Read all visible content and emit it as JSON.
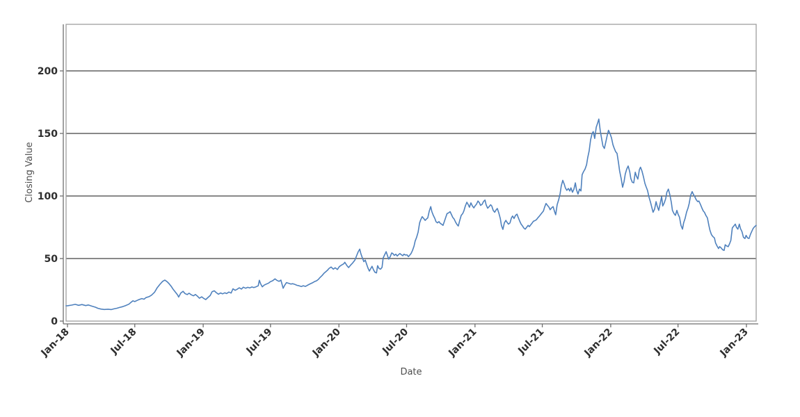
{
  "chart_data": {
    "type": "line",
    "title": "",
    "xlabel": "Date",
    "ylabel": "Closing Value",
    "series_name": "Closing Value",
    "legend": "none",
    "grid": "horizontal-only",
    "background_color": "#ffffff",
    "line_color": "#4f81bd",
    "grid_color": "#111111",
    "frame_color": "#9e9e9e",
    "axis_line_color": "#6e6e6e",
    "tick_label_color": "#2e2e2e",
    "ylim": [
      0,
      237
    ],
    "x_domain_days": [
      -4,
      1852
    ],
    "y_ticks": [
      0,
      50,
      100,
      150,
      200
    ],
    "grid_values": [
      50,
      100,
      150,
      200
    ],
    "x_ticks": [
      {
        "label": "Jan-18",
        "day": 0
      },
      {
        "label": "Jul-18",
        "day": 181
      },
      {
        "label": "Jan-19",
        "day": 365
      },
      {
        "label": "Jul-19",
        "day": 546
      },
      {
        "label": "Jan-20",
        "day": 730
      },
      {
        "label": "Jul-20",
        "day": 912
      },
      {
        "label": "Jan-21",
        "day": 1096
      },
      {
        "label": "Jul-21",
        "day": 1277
      },
      {
        "label": "Jan-22",
        "day": 1461
      },
      {
        "label": "Jul-22",
        "day": 1642
      },
      {
        "label": "Jan-23",
        "day": 1826
      }
    ],
    "points": [
      [
        -4,
        12.2
      ],
      [
        0,
        12.3
      ],
      [
        11,
        12.8
      ],
      [
        21,
        13.4
      ],
      [
        30,
        12.6
      ],
      [
        39,
        13.2
      ],
      [
        49,
        12.4
      ],
      [
        56,
        12.9
      ],
      [
        65,
        12.0
      ],
      [
        75,
        11.1
      ],
      [
        82,
        10.2
      ],
      [
        90,
        9.6
      ],
      [
        99,
        9.3
      ],
      [
        109,
        9.5
      ],
      [
        118,
        9.2
      ],
      [
        125,
        9.8
      ],
      [
        133,
        10.3
      ],
      [
        140,
        10.9
      ],
      [
        148,
        11.5
      ],
      [
        155,
        12.2
      ],
      [
        165,
        13.5
      ],
      [
        170,
        14.8
      ],
      [
        176,
        16.2
      ],
      [
        181,
        15.6
      ],
      [
        187,
        16.5
      ],
      [
        193,
        17.3
      ],
      [
        200,
        18.0
      ],
      [
        206,
        17.5
      ],
      [
        211,
        18.8
      ],
      [
        219,
        19.5
      ],
      [
        226,
        20.7
      ],
      [
        234,
        23.0
      ],
      [
        241,
        26.5
      ],
      [
        249,
        29.5
      ],
      [
        256,
        31.8
      ],
      [
        262,
        32.8
      ],
      [
        268,
        31.5
      ],
      [
        273,
        30.0
      ],
      [
        279,
        27.8
      ],
      [
        284,
        25.5
      ],
      [
        290,
        23.3
      ],
      [
        296,
        21.0
      ],
      [
        299,
        19.2
      ],
      [
        305,
        22.5
      ],
      [
        311,
        23.8
      ],
      [
        316,
        22.0
      ],
      [
        322,
        21.2
      ],
      [
        327,
        22.3
      ],
      [
        333,
        21.0
      ],
      [
        339,
        20.2
      ],
      [
        344,
        21.3
      ],
      [
        350,
        19.8
      ],
      [
        355,
        18.3
      ],
      [
        361,
        19.4
      ],
      [
        367,
        18.0
      ],
      [
        372,
        17.2
      ],
      [
        378,
        18.9
      ],
      [
        384,
        20.5
      ],
      [
        389,
        23.5
      ],
      [
        395,
        24.2
      ],
      [
        400,
        22.8
      ],
      [
        406,
        21.5
      ],
      [
        412,
        22.5
      ],
      [
        417,
        21.8
      ],
      [
        423,
        22.6
      ],
      [
        428,
        22.0
      ],
      [
        434,
        23.2
      ],
      [
        440,
        22.4
      ],
      [
        445,
        25.8
      ],
      [
        451,
        24.6
      ],
      [
        456,
        25.4
      ],
      [
        462,
        26.6
      ],
      [
        468,
        25.6
      ],
      [
        473,
        27.1
      ],
      [
        479,
        26.3
      ],
      [
        485,
        27.0
      ],
      [
        490,
        26.5
      ],
      [
        496,
        27.3
      ],
      [
        501,
        26.8
      ],
      [
        507,
        27.4
      ],
      [
        513,
        28.2
      ],
      [
        516,
        32.6
      ],
      [
        520,
        29.5
      ],
      [
        524,
        27.4
      ],
      [
        529,
        28.8
      ],
      [
        535,
        29.6
      ],
      [
        541,
        30.4
      ],
      [
        546,
        31.5
      ],
      [
        552,
        32.3
      ],
      [
        558,
        33.8
      ],
      [
        563,
        32.6
      ],
      [
        569,
        31.8
      ],
      [
        574,
        32.8
      ],
      [
        580,
        26.3
      ],
      [
        584,
        28.5
      ],
      [
        589,
        30.8
      ],
      [
        595,
        30.2
      ],
      [
        601,
        29.6
      ],
      [
        606,
        29.9
      ],
      [
        612,
        29.3
      ],
      [
        617,
        28.6
      ],
      [
        623,
        28.2
      ],
      [
        629,
        27.6
      ],
      [
        634,
        28.3
      ],
      [
        640,
        27.7
      ],
      [
        644,
        28.4
      ],
      [
        647,
        28.9
      ],
      [
        653,
        29.8
      ],
      [
        659,
        30.6
      ],
      [
        664,
        31.5
      ],
      [
        670,
        32.2
      ],
      [
        675,
        33.4
      ],
      [
        679,
        34.8
      ],
      [
        685,
        36.5
      ],
      [
        690,
        38.3
      ],
      [
        696,
        39.8
      ],
      [
        700,
        40.9
      ],
      [
        703,
        42.0
      ],
      [
        709,
        43.2
      ],
      [
        715,
        41.5
      ],
      [
        720,
        42.6
      ],
      [
        726,
        41.2
      ],
      [
        731,
        43.5
      ],
      [
        737,
        44.8
      ],
      [
        743,
        45.8
      ],
      [
        746,
        47.0
      ],
      [
        752,
        44.2
      ],
      [
        756,
        42.8
      ],
      [
        761,
        44.6
      ],
      [
        767,
        46.5
      ],
      [
        773,
        48.8
      ],
      [
        778,
        52.5
      ],
      [
        782,
        55.5
      ],
      [
        786,
        57.5
      ],
      [
        789,
        54.0
      ],
      [
        793,
        50.5
      ],
      [
        797,
        47.5
      ],
      [
        801,
        48.8
      ],
      [
        804,
        46.0
      ],
      [
        808,
        42.5
      ],
      [
        812,
        40.0
      ],
      [
        816,
        42.2
      ],
      [
        819,
        43.8
      ],
      [
        823,
        41.0
      ],
      [
        827,
        39.0
      ],
      [
        831,
        38.5
      ],
      [
        834,
        44.3
      ],
      [
        838,
        42.0
      ],
      [
        842,
        41.5
      ],
      [
        846,
        43.0
      ],
      [
        849,
        50.5
      ],
      [
        853,
        53.0
      ],
      [
        857,
        55.5
      ],
      [
        861,
        52.0
      ],
      [
        864,
        49.5
      ],
      [
        868,
        51.5
      ],
      [
        872,
        54.5
      ],
      [
        875,
        54.0
      ],
      [
        879,
        52.5
      ],
      [
        883,
        53.5
      ],
      [
        887,
        52.0
      ],
      [
        890,
        53.0
      ],
      [
        894,
        54.0
      ],
      [
        898,
        53.0
      ],
      [
        902,
        52.3
      ],
      [
        905,
        53.5
      ],
      [
        909,
        52.8
      ],
      [
        913,
        53.0
      ],
      [
        917,
        51.5
      ],
      [
        920,
        52.5
      ],
      [
        924,
        54.0
      ],
      [
        928,
        56.5
      ],
      [
        932,
        60.0
      ],
      [
        935,
        64.0
      ],
      [
        939,
        67.0
      ],
      [
        943,
        71.0
      ],
      [
        947,
        78.5
      ],
      [
        950,
        81.0
      ],
      [
        954,
        83.5
      ],
      [
        958,
        82.0
      ],
      [
        962,
        80.5
      ],
      [
        965,
        81.5
      ],
      [
        969,
        82.5
      ],
      [
        973,
        88.0
      ],
      [
        977,
        91.5
      ],
      [
        980,
        87.5
      ],
      [
        984,
        84.5
      ],
      [
        988,
        82.0
      ],
      [
        991,
        79.5
      ],
      [
        995,
        78.5
      ],
      [
        999,
        79.5
      ],
      [
        1003,
        78.0
      ],
      [
        1006,
        77.5
      ],
      [
        1010,
        76.5
      ],
      [
        1014,
        80.0
      ],
      [
        1018,
        83.5
      ],
      [
        1021,
        86.0
      ],
      [
        1025,
        86.5
      ],
      [
        1029,
        87.5
      ],
      [
        1033,
        85.0
      ],
      [
        1036,
        83.0
      ],
      [
        1040,
        81.5
      ],
      [
        1044,
        79.0
      ],
      [
        1048,
        77.0
      ],
      [
        1051,
        76.0
      ],
      [
        1055,
        80.5
      ],
      [
        1059,
        84.5
      ],
      [
        1063,
        86.0
      ],
      [
        1066,
        88.0
      ],
      [
        1070,
        92.0
      ],
      [
        1074,
        95.0
      ],
      [
        1078,
        93.0
      ],
      [
        1081,
        91.0
      ],
      [
        1085,
        94.5
      ],
      [
        1089,
        92.0
      ],
      [
        1093,
        90.5
      ],
      [
        1096,
        92.0
      ],
      [
        1100,
        93.5
      ],
      [
        1104,
        96.0
      ],
      [
        1108,
        94.5
      ],
      [
        1111,
        92.5
      ],
      [
        1115,
        93.3
      ],
      [
        1119,
        95.6
      ],
      [
        1123,
        96.8
      ],
      [
        1126,
        93.0
      ],
      [
        1130,
        90.2
      ],
      [
        1134,
        91.5
      ],
      [
        1138,
        93.0
      ],
      [
        1141,
        92.0
      ],
      [
        1145,
        88.5
      ],
      [
        1149,
        87.0
      ],
      [
        1153,
        89.0
      ],
      [
        1156,
        90.0
      ],
      [
        1160,
        86.5
      ],
      [
        1164,
        82.0
      ],
      [
        1167,
        76.5
      ],
      [
        1171,
        73.3
      ],
      [
        1175,
        78.5
      ],
      [
        1179,
        80.5
      ],
      [
        1182,
        79.0
      ],
      [
        1186,
        77.5
      ],
      [
        1190,
        78.5
      ],
      [
        1194,
        82.5
      ],
      [
        1197,
        84.0
      ],
      [
        1201,
        82.0
      ],
      [
        1205,
        84.5
      ],
      [
        1209,
        85.5
      ],
      [
        1212,
        83.0
      ],
      [
        1216,
        80.0
      ],
      [
        1220,
        77.5
      ],
      [
        1224,
        76.0
      ],
      [
        1227,
        74.5
      ],
      [
        1231,
        73.5
      ],
      [
        1235,
        75.0
      ],
      [
        1239,
        76.5
      ],
      [
        1242,
        75.5
      ],
      [
        1246,
        77.0
      ],
      [
        1250,
        78.5
      ],
      [
        1253,
        79.8
      ],
      [
        1257,
        80.3
      ],
      [
        1261,
        81.0
      ],
      [
        1265,
        82.5
      ],
      [
        1268,
        83.5
      ],
      [
        1272,
        85.0
      ],
      [
        1276,
        86.5
      ],
      [
        1280,
        88.0
      ],
      [
        1283,
        91.0
      ],
      [
        1287,
        94.0
      ],
      [
        1291,
        92.5
      ],
      [
        1295,
        91.0
      ],
      [
        1298,
        89.0
      ],
      [
        1302,
        90.5
      ],
      [
        1306,
        91.5
      ],
      [
        1310,
        87.5
      ],
      [
        1313,
        85.0
      ],
      [
        1317,
        93.0
      ],
      [
        1321,
        97.0
      ],
      [
        1325,
        102.0
      ],
      [
        1328,
        108.0
      ],
      [
        1332,
        112.5
      ],
      [
        1336,
        109.5
      ],
      [
        1339,
        106.5
      ],
      [
        1343,
        104.5
      ],
      [
        1347,
        106.0
      ],
      [
        1351,
        104.0
      ],
      [
        1354,
        106.5
      ],
      [
        1358,
        103.0
      ],
      [
        1362,
        105.5
      ],
      [
        1366,
        110.5
      ],
      [
        1369,
        105.0
      ],
      [
        1373,
        101.5
      ],
      [
        1377,
        105.5
      ],
      [
        1381,
        104.0
      ],
      [
        1384,
        117.0
      ],
      [
        1388,
        119.5
      ],
      [
        1392,
        121.5
      ],
      [
        1396,
        125.0
      ],
      [
        1399,
        130.5
      ],
      [
        1403,
        136.0
      ],
      [
        1407,
        145.0
      ],
      [
        1411,
        150.0
      ],
      [
        1414,
        151.5
      ],
      [
        1418,
        146.0
      ],
      [
        1422,
        155.0
      ],
      [
        1426,
        158.5
      ],
      [
        1429,
        161.5
      ],
      [
        1433,
        152.0
      ],
      [
        1437,
        145.0
      ],
      [
        1440,
        140.0
      ],
      [
        1444,
        138.0
      ],
      [
        1448,
        143.5
      ],
      [
        1452,
        149.0
      ],
      [
        1455,
        152.5
      ],
      [
        1459,
        150.0
      ],
      [
        1463,
        146.5
      ],
      [
        1467,
        141.0
      ],
      [
        1470,
        138.5
      ],
      [
        1474,
        135.5
      ],
      [
        1478,
        134.0
      ],
      [
        1482,
        126.5
      ],
      [
        1485,
        120.0
      ],
      [
        1489,
        114.0
      ],
      [
        1493,
        107.0
      ],
      [
        1497,
        111.5
      ],
      [
        1500,
        117.5
      ],
      [
        1504,
        121.5
      ],
      [
        1508,
        124.0
      ],
      [
        1512,
        119.5
      ],
      [
        1515,
        114.0
      ],
      [
        1519,
        111.0
      ],
      [
        1523,
        110.5
      ],
      [
        1527,
        119.0
      ],
      [
        1530,
        116.0
      ],
      [
        1534,
        113.5
      ],
      [
        1538,
        121.0
      ],
      [
        1541,
        123.0
      ],
      [
        1545,
        120.0
      ],
      [
        1549,
        115.5
      ],
      [
        1553,
        110.0
      ],
      [
        1556,
        107.5
      ],
      [
        1560,
        104.5
      ],
      [
        1564,
        99.0
      ],
      [
        1568,
        95.0
      ],
      [
        1571,
        91.5
      ],
      [
        1575,
        87.0
      ],
      [
        1579,
        89.5
      ],
      [
        1583,
        95.5
      ],
      [
        1586,
        92.0
      ],
      [
        1590,
        88.5
      ],
      [
        1594,
        94.0
      ],
      [
        1598,
        99.5
      ],
      [
        1601,
        92.0
      ],
      [
        1605,
        94.5
      ],
      [
        1609,
        98.0
      ],
      [
        1612,
        103.0
      ],
      [
        1616,
        105.5
      ],
      [
        1620,
        101.0
      ],
      [
        1624,
        95.0
      ],
      [
        1627,
        88.5
      ],
      [
        1631,
        86.0
      ],
      [
        1635,
        84.5
      ],
      [
        1639,
        88.5
      ],
      [
        1642,
        85.5
      ],
      [
        1646,
        83.0
      ],
      [
        1650,
        76.5
      ],
      [
        1654,
        73.5
      ],
      [
        1657,
        78.5
      ],
      [
        1661,
        82.0
      ],
      [
        1665,
        87.0
      ],
      [
        1669,
        90.5
      ],
      [
        1672,
        94.0
      ],
      [
        1676,
        100.5
      ],
      [
        1680,
        103.5
      ],
      [
        1683,
        101.5
      ],
      [
        1687,
        99.5
      ],
      [
        1691,
        97.0
      ],
      [
        1695,
        95.5
      ],
      [
        1698,
        96.0
      ],
      [
        1702,
        93.5
      ],
      [
        1706,
        90.5
      ],
      [
        1710,
        88.0
      ],
      [
        1713,
        87.0
      ],
      [
        1717,
        84.5
      ],
      [
        1721,
        82.5
      ],
      [
        1725,
        76.5
      ],
      [
        1728,
        72.5
      ],
      [
        1732,
        69.0
      ],
      [
        1736,
        67.5
      ],
      [
        1740,
        66.5
      ],
      [
        1743,
        62.5
      ],
      [
        1747,
        60.0
      ],
      [
        1751,
        58.0
      ],
      [
        1754,
        59.5
      ],
      [
        1758,
        58.5
      ],
      [
        1762,
        57.0
      ],
      [
        1766,
        56.5
      ],
      [
        1769,
        61.0
      ],
      [
        1773,
        60.0
      ],
      [
        1777,
        59.5
      ],
      [
        1781,
        62.0
      ],
      [
        1784,
        64.5
      ],
      [
        1788,
        74.5
      ],
      [
        1792,
        76.0
      ],
      [
        1796,
        77.5
      ],
      [
        1799,
        75.0
      ],
      [
        1803,
        73.5
      ],
      [
        1807,
        77.5
      ],
      [
        1810,
        74.0
      ],
      [
        1814,
        71.5
      ],
      [
        1818,
        67.0
      ],
      [
        1822,
        66.0
      ],
      [
        1825,
        68.5
      ],
      [
        1829,
        66.5
      ],
      [
        1833,
        66.0
      ],
      [
        1837,
        69.5
      ],
      [
        1840,
        71.5
      ],
      [
        1844,
        74.0
      ],
      [
        1848,
        75.5
      ],
      [
        1852,
        76.5
      ]
    ]
  }
}
